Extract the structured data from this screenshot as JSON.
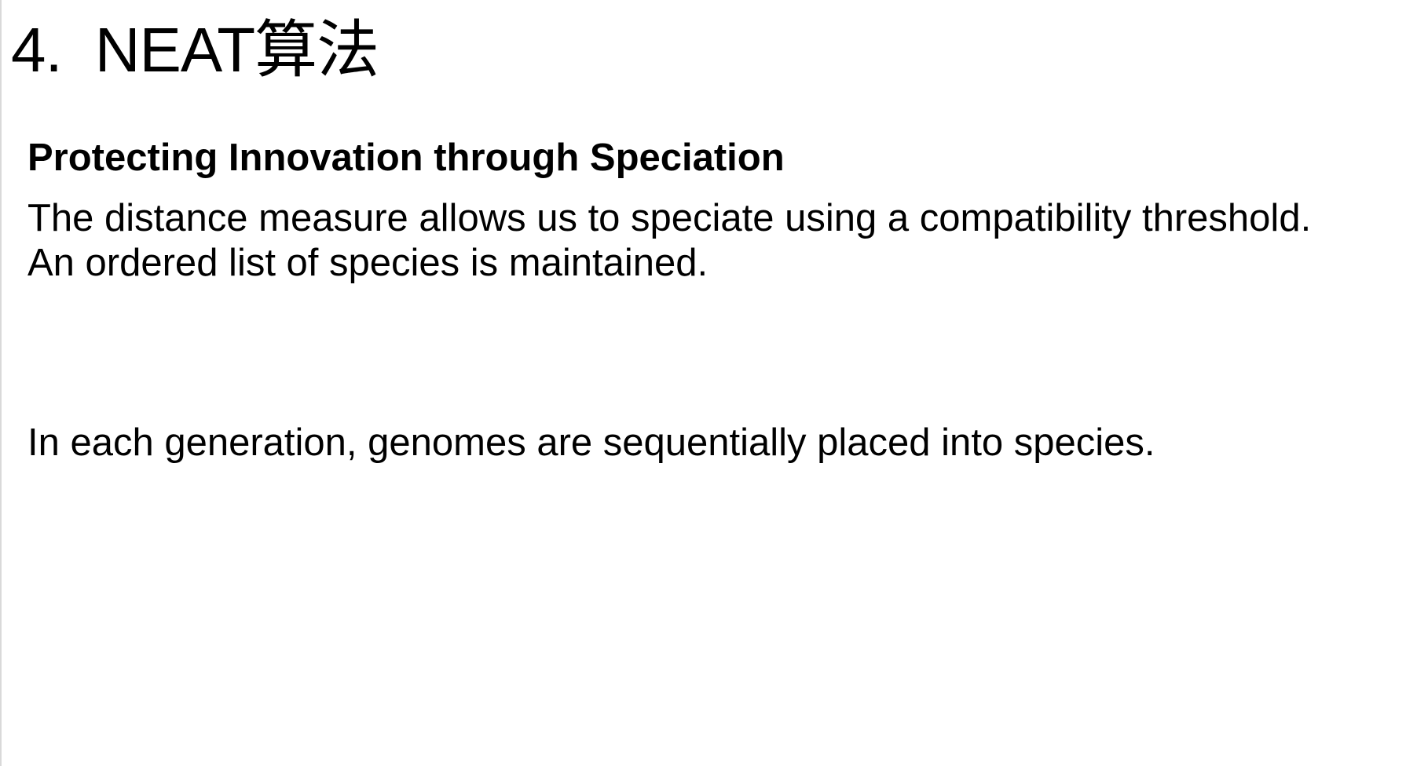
{
  "slide": {
    "title_number": "4.",
    "title_text": "NEAT算法",
    "heading": "Protecting Innovation through Speciation",
    "paragraph1_line1": "The distance measure allows us to speciate using a compatibility threshold.",
    "paragraph1_line2": "An ordered list of species is maintained.",
    "paragraph2": "In each generation, genomes are sequentially placed into species."
  }
}
